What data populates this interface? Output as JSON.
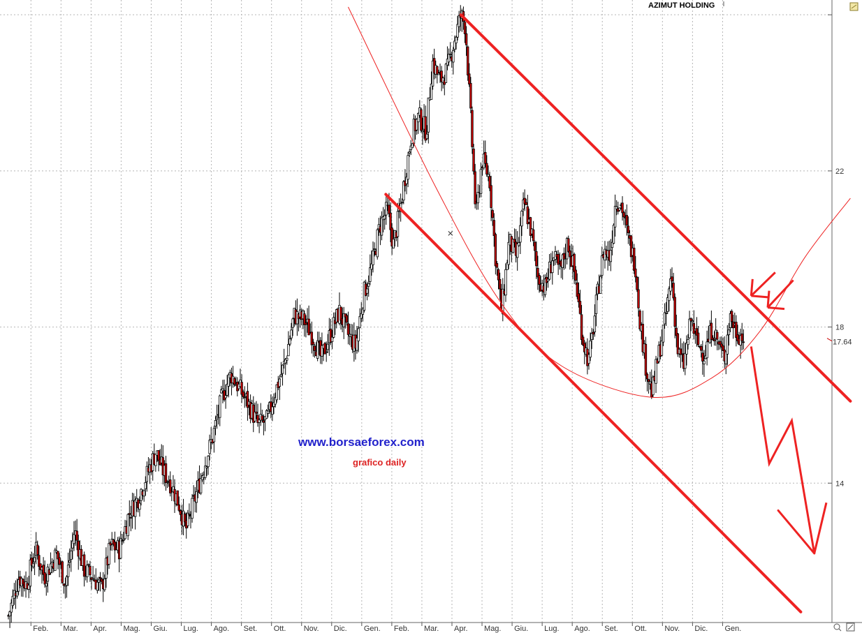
{
  "chart_data": {
    "type": "candlestick",
    "title": "AZIMUT HOLDING",
    "watermark": "www.borsaeforex.com",
    "subtitle": "grafico daily",
    "last_price": "17.64",
    "y_ticks": [
      "22",
      "18",
      "14"
    ],
    "ylim": [
      10.5,
      26.2
    ],
    "x_months": [
      {
        "label": "Feb.",
        "start": 1
      },
      {
        "label": "Mar.",
        "start": 2
      },
      {
        "label": "Apr.",
        "start": 3
      },
      {
        "label": "Mag.",
        "start": 4
      },
      {
        "label": "Giu.",
        "start": 5
      },
      {
        "label": "Lug.",
        "start": 6
      },
      {
        "label": "Ago.",
        "start": 7
      },
      {
        "label": "Set.",
        "start": 8
      },
      {
        "label": "Ott.",
        "start": 9
      },
      {
        "label": "Nov.",
        "start": 10
      },
      {
        "label": "Dic.",
        "start": 11
      },
      {
        "label": "Gen.",
        "start": 12
      },
      {
        "label": "Feb.",
        "start": 13
      },
      {
        "label": "Mar.",
        "start": 14
      },
      {
        "label": "Apr.",
        "start": 15
      },
      {
        "label": "Mag.",
        "start": 16
      },
      {
        "label": "Giu.",
        "start": 17
      },
      {
        "label": "Lug.",
        "start": 18
      },
      {
        "label": "Ago.",
        "start": 19
      },
      {
        "label": "Set.",
        "start": 20
      },
      {
        "label": "Ott.",
        "start": 21
      },
      {
        "label": "Nov.",
        "start": 22
      },
      {
        "label": "Dic.",
        "start": 23
      },
      {
        "label": "Gen.",
        "start": 24
      }
    ],
    "price_path": [
      [
        0.0,
        10.6
      ],
      [
        0.35,
        11.6
      ],
      [
        0.6,
        11.4
      ],
      [
        0.9,
        12.3
      ],
      [
        1.2,
        11.6
      ],
      [
        1.6,
        12.2
      ],
      [
        1.9,
        11.4
      ],
      [
        2.2,
        12.8
      ],
      [
        2.5,
        11.8
      ],
      [
        2.8,
        11.6
      ],
      [
        3.1,
        11.3
      ],
      [
        3.4,
        12.4
      ],
      [
        3.7,
        12.3
      ],
      [
        4.0,
        13.2
      ],
      [
        4.3,
        13.6
      ],
      [
        4.6,
        14.2
      ],
      [
        4.9,
        14.8
      ],
      [
        5.15,
        14.3
      ],
      [
        5.4,
        14.0
      ],
      [
        5.7,
        13.4
      ],
      [
        5.9,
        12.8
      ],
      [
        6.2,
        13.6
      ],
      [
        6.5,
        14.4
      ],
      [
        6.8,
        15.2
      ],
      [
        7.1,
        16.2
      ],
      [
        7.4,
        16.8
      ],
      [
        7.7,
        16.4
      ],
      [
        8.0,
        16.0
      ],
      [
        8.3,
        15.5
      ],
      [
        8.6,
        15.6
      ],
      [
        8.9,
        16.4
      ],
      [
        9.2,
        17.1
      ],
      [
        9.5,
        18.3
      ],
      [
        9.8,
        18.2
      ],
      [
        10.1,
        17.8
      ],
      [
        10.4,
        17.2
      ],
      [
        10.7,
        17.8
      ],
      [
        11.0,
        18.4
      ],
      [
        11.3,
        17.8
      ],
      [
        11.55,
        17.5
      ],
      [
        11.8,
        18.8
      ],
      [
        12.1,
        19.6
      ],
      [
        12.35,
        20.6
      ],
      [
        12.6,
        21.0
      ],
      [
        12.8,
        20.1
      ],
      [
        13.0,
        20.9
      ],
      [
        13.2,
        21.9
      ],
      [
        13.4,
        22.9
      ],
      [
        13.65,
        23.4
      ],
      [
        13.9,
        23.0
      ],
      [
        14.1,
        24.8
      ],
      [
        14.35,
        24.3
      ],
      [
        14.6,
        24.6
      ],
      [
        14.85,
        25.4
      ],
      [
        15.05,
        26.0
      ],
      [
        15.2,
        25.7
      ],
      [
        15.4,
        23.0
      ],
      [
        15.55,
        20.8
      ],
      [
        15.75,
        22.3
      ],
      [
        16.0,
        21.8
      ],
      [
        16.2,
        19.8
      ],
      [
        16.4,
        18.4
      ],
      [
        16.65,
        20.2
      ],
      [
        16.9,
        19.8
      ],
      [
        17.15,
        21.2
      ],
      [
        17.4,
        20.4
      ],
      [
        17.6,
        19.3
      ],
      [
        17.85,
        19.0
      ],
      [
        18.1,
        19.8
      ],
      [
        18.35,
        19.4
      ],
      [
        18.6,
        20.2
      ],
      [
        18.85,
        19.3
      ],
      [
        19.1,
        17.7
      ],
      [
        19.3,
        17.1
      ],
      [
        19.55,
        18.6
      ],
      [
        19.8,
        20.0
      ],
      [
        20.0,
        19.8
      ],
      [
        20.2,
        21.3
      ],
      [
        20.4,
        21.1
      ],
      [
        20.6,
        20.3
      ],
      [
        20.85,
        19.6
      ],
      [
        21.0,
        18.2
      ],
      [
        21.2,
        17.0
      ],
      [
        21.4,
        16.3
      ],
      [
        21.6,
        17.2
      ],
      [
        21.85,
        18.2
      ],
      [
        22.05,
        19.4
      ],
      [
        22.25,
        17.4
      ],
      [
        22.45,
        17.0
      ],
      [
        22.7,
        18.2
      ],
      [
        22.9,
        17.6
      ],
      [
        23.15,
        17.3
      ],
      [
        23.4,
        18.0
      ],
      [
        23.6,
        17.6
      ],
      [
        23.8,
        17.2
      ],
      [
        24.0,
        18.3
      ],
      [
        24.2,
        17.9
      ],
      [
        24.45,
        17.7
      ]
    ],
    "annotations": {
      "upper_channel_line": [
        [
          15.05,
          26.0
        ],
        [
          28.0,
          16.1
        ]
      ],
      "lower_channel_line": [
        [
          12.55,
          21.4
        ],
        [
          26.35,
          10.7
        ]
      ],
      "arc_curve": [
        [
          11.3,
          26.2
        ],
        [
          14.2,
          21.6
        ],
        [
          16.4,
          18.6
        ],
        [
          18.4,
          17.0
        ],
        [
          21.4,
          16.2
        ],
        [
          23.4,
          16.7
        ],
        [
          25.0,
          17.9
        ],
        [
          26.5,
          19.8
        ],
        [
          28.0,
          21.3
        ]
      ],
      "forecast_zigzag": [
        [
          24.7,
          17.5
        ],
        [
          25.3,
          14.5
        ],
        [
          26.05,
          15.6
        ],
        [
          26.8,
          12.2
        ],
        [
          27.2,
          13.5
        ]
      ],
      "arrows_in": [
        [
          [
            25.5,
            19.4
          ],
          [
            24.7,
            18.8
          ]
        ],
        [
          [
            26.1,
            19.2
          ],
          [
            25.25,
            18.5
          ]
        ]
      ],
      "arrow_head_zigzag": [
        [
          25.6,
          13.3
        ],
        [
          26.8,
          12.2
        ]
      ],
      "small_mark": [
        14.7,
        20.4
      ]
    }
  }
}
